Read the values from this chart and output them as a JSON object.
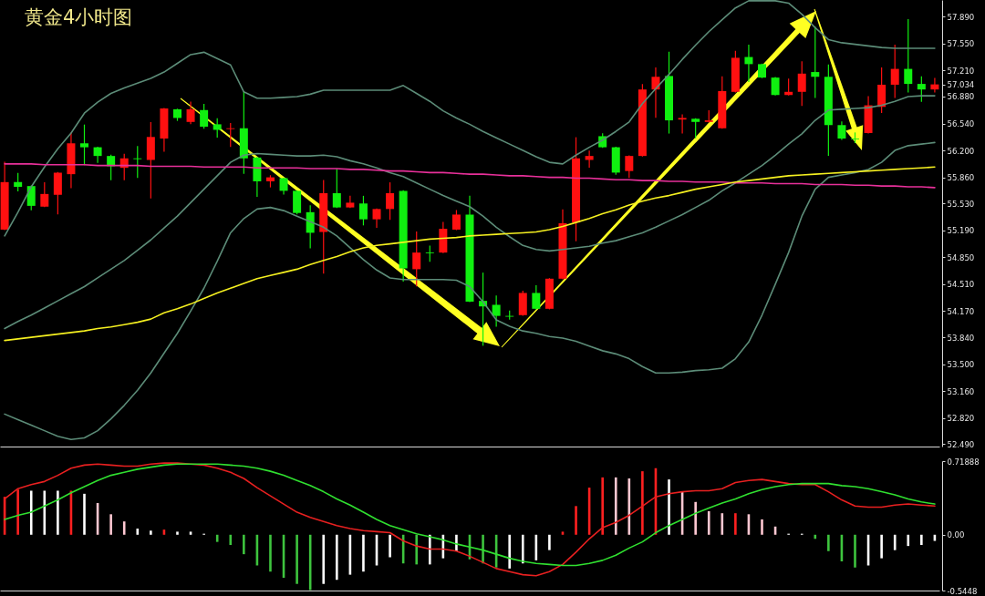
{
  "chart_data": [
    {
      "type": "candlestick",
      "title": "黄金4小时图",
      "tick_labels": "y",
      "ylim": [
        52.46,
        58.1
      ],
      "yticks": [
        {
          "value": 57.89,
          "label": "57.890"
        },
        {
          "value": 57.55,
          "label": "57.550"
        },
        {
          "value": 57.21,
          "label": "57.210"
        },
        57.034,
        {
          "value": 56.88,
          "label": "56.880"
        },
        {
          "value": 56.54,
          "label": "56.540"
        },
        {
          "value": 56.2,
          "label": "56.200"
        },
        {
          "value": 55.86,
          "label": "55.860"
        },
        {
          "value": 55.53,
          "label": "55.530"
        },
        {
          "value": 55.19,
          "label": "55.190"
        },
        {
          "value": 54.85,
          "label": "54.850"
        },
        {
          "value": 54.51,
          "label": "54.510"
        },
        {
          "value": 54.17,
          "label": "54.170"
        },
        {
          "value": 53.84,
          "label": "53.840"
        },
        {
          "value": 53.5,
          "label": "53.500"
        },
        {
          "value": 53.16,
          "label": "53.160"
        },
        {
          "value": 52.82,
          "label": "52.820"
        },
        {
          "value": 52.49,
          "label": "52.490"
        }
      ],
      "categories": [
        null,
        null,
        null,
        null,
        null,
        null,
        null,
        null,
        null,
        null,
        null,
        null,
        null,
        null,
        null,
        null,
        null,
        null,
        null,
        null,
        null,
        null,
        null,
        null,
        null,
        null,
        null,
        null,
        null,
        null,
        null,
        null,
        null,
        null,
        null,
        null,
        null,
        null,
        null,
        null,
        null,
        null,
        null,
        null,
        null,
        null,
        null,
        null,
        null,
        null,
        null,
        null,
        null,
        null,
        null,
        null,
        null,
        null,
        null,
        null,
        null,
        null,
        null,
        null,
        null,
        null,
        null,
        null,
        null,
        null,
        null
      ],
      "series": [
        {
          "type": "line",
          "color": "#5c8c78",
          "values": [
            55.12,
            55.42,
            55.74,
            55.99,
            56.22,
            56.42,
            56.67,
            56.81,
            56.92,
            56.99,
            57.05,
            57.11,
            57.19,
            57.3,
            57.41,
            57.44,
            57.36,
            57.28,
            56.94,
            56.86,
            56.86,
            56.87,
            56.88,
            56.91,
            56.96,
            56.96,
            56.96,
            56.96,
            56.96,
            56.96,
            57.02,
            56.92,
            56.82,
            56.7,
            56.61,
            56.53,
            56.44,
            56.36,
            56.28,
            56.2,
            56.12,
            56.05,
            56.03,
            56.14,
            56.24,
            56.33,
            56.44,
            56.56,
            56.79,
            56.98,
            57.16,
            57.35,
            57.53,
            57.7,
            57.85,
            58.0,
            58.09,
            58.09,
            58.09,
            58.06,
            57.92,
            57.75,
            57.6,
            57.56,
            57.54,
            57.52,
            57.5,
            57.49,
            57.49,
            57.49,
            57.49
          ]
        },
        {
          "type": "line",
          "color": "#5c8c78",
          "values": [
            53.95,
            54.04,
            54.12,
            54.21,
            54.3,
            54.39,
            54.48,
            54.59,
            54.7,
            54.81,
            54.94,
            55.07,
            55.22,
            55.37,
            55.54,
            55.71,
            55.88,
            56.05,
            56.14,
            56.16,
            56.15,
            56.14,
            56.13,
            56.13,
            56.14,
            56.12,
            56.07,
            56.03,
            55.98,
            55.92,
            55.87,
            55.79,
            55.71,
            55.63,
            55.56,
            55.49,
            55.37,
            55.23,
            55.11,
            55.0,
            54.95,
            54.93,
            54.95,
            54.97,
            54.99,
            55.03,
            55.06,
            55.11,
            55.16,
            55.23,
            55.31,
            55.39,
            55.48,
            55.57,
            55.69,
            55.79,
            55.9,
            56.01,
            56.14,
            56.28,
            56.41,
            56.58,
            56.71,
            56.72,
            56.73,
            56.74,
            56.77,
            56.82,
            56.88,
            56.89,
            56.89
          ]
        },
        {
          "type": "line",
          "color": "#5c8c78",
          "values": [
            52.87,
            52.8,
            52.73,
            52.66,
            52.59,
            52.55,
            52.57,
            52.66,
            52.81,
            52.98,
            53.17,
            53.39,
            53.64,
            53.89,
            54.17,
            54.46,
            54.8,
            55.16,
            55.34,
            55.46,
            55.48,
            55.44,
            55.37,
            55.3,
            55.23,
            55.12,
            54.97,
            54.82,
            54.69,
            54.59,
            54.57,
            54.57,
            54.57,
            54.57,
            54.56,
            54.48,
            54.29,
            54.06,
            53.98,
            53.92,
            53.89,
            53.85,
            53.83,
            53.79,
            53.73,
            53.67,
            53.63,
            53.57,
            53.47,
            53.39,
            53.39,
            53.4,
            53.42,
            53.43,
            53.45,
            53.57,
            53.78,
            54.12,
            54.51,
            54.91,
            55.37,
            55.71,
            55.86,
            55.89,
            55.92,
            55.96,
            56.05,
            56.2,
            56.26,
            56.28,
            56.3
          ]
        },
        {
          "type": "line",
          "color": "#e8309a",
          "values": [
            56.03,
            56.03,
            56.03,
            56.02,
            56.02,
            56.02,
            56.02,
            56.01,
            56.01,
            56.01,
            56.01,
            56.0,
            56.0,
            56.0,
            56.0,
            55.99,
            55.99,
            55.99,
            55.99,
            55.98,
            55.98,
            55.98,
            55.98,
            55.97,
            55.97,
            55.97,
            55.96,
            55.96,
            55.95,
            55.94,
            55.94,
            55.93,
            55.92,
            55.92,
            55.91,
            55.9,
            55.9,
            55.89,
            55.88,
            55.88,
            55.87,
            55.86,
            55.86,
            55.85,
            55.85,
            55.84,
            55.83,
            55.83,
            55.82,
            55.82,
            55.81,
            55.81,
            55.8,
            55.8,
            55.8,
            55.79,
            55.79,
            55.79,
            55.78,
            55.78,
            55.78,
            55.77,
            55.77,
            55.77,
            55.76,
            55.76,
            55.75,
            55.75,
            55.74,
            55.74,
            55.73
          ]
        },
        {
          "type": "line",
          "color": "#f5f020",
          "values": [
            53.8,
            53.82,
            53.84,
            53.86,
            53.88,
            53.9,
            53.92,
            53.95,
            53.97,
            54.0,
            54.03,
            54.07,
            54.15,
            54.2,
            54.26,
            54.33,
            54.4,
            54.46,
            54.52,
            54.58,
            54.62,
            54.66,
            54.7,
            54.76,
            54.81,
            54.86,
            54.92,
            54.97,
            55.0,
            55.02,
            55.04,
            55.06,
            55.08,
            55.09,
            55.1,
            55.12,
            55.13,
            55.14,
            55.15,
            55.16,
            55.17,
            55.2,
            55.24,
            55.29,
            55.34,
            55.4,
            55.45,
            55.51,
            55.56,
            55.6,
            55.63,
            55.67,
            55.71,
            55.74,
            55.77,
            55.8,
            55.82,
            55.84,
            55.86,
            55.88,
            55.89,
            55.9,
            55.91,
            55.92,
            55.93,
            55.94,
            55.95,
            55.96,
            55.97,
            55.98,
            55.99
          ]
        },
        {
          "type": "candlestick",
          "ohlc": [
            [
              55.2,
              56.05,
              55.2,
              55.8
            ],
            [
              55.8,
              55.91,
              55.69,
              55.74
            ],
            [
              55.75,
              55.75,
              55.45,
              55.5
            ],
            [
              55.49,
              55.79,
              55.49,
              55.65
            ],
            [
              55.64,
              55.92,
              55.4,
              55.92
            ],
            [
              55.9,
              56.42,
              55.73,
              56.29
            ],
            [
              56.29,
              56.52,
              56.02,
              56.24
            ],
            [
              56.24,
              56.24,
              56.05,
              56.13
            ],
            [
              56.13,
              56.14,
              55.83,
              56.0
            ],
            [
              55.98,
              56.15,
              55.83,
              56.1
            ],
            [
              56.1,
              56.25,
              55.86,
              56.09
            ],
            [
              56.08,
              56.55,
              55.6,
              56.37
            ],
            [
              56.35,
              56.73,
              56.19,
              56.73
            ],
            [
              56.72,
              56.72,
              56.58,
              56.61
            ],
            [
              56.56,
              56.81,
              56.54,
              56.72
            ],
            [
              56.71,
              56.78,
              56.48,
              56.5
            ],
            [
              56.53,
              56.6,
              56.37,
              56.46
            ],
            [
              56.47,
              56.54,
              56.25,
              56.48
            ],
            [
              56.48,
              56.94,
              55.91,
              56.1
            ],
            [
              56.11,
              56.11,
              55.62,
              55.81
            ],
            [
              55.81,
              55.88,
              55.74,
              55.86
            ],
            [
              55.85,
              55.85,
              55.65,
              55.69
            ],
            [
              55.69,
              55.69,
              55.4,
              55.41
            ],
            [
              55.42,
              55.5,
              54.97,
              55.16
            ],
            [
              55.17,
              55.82,
              54.65,
              55.66
            ],
            [
              55.66,
              55.96,
              55.48,
              55.48
            ],
            [
              55.48,
              55.62,
              55.48,
              55.54
            ],
            [
              55.53,
              55.62,
              55.26,
              55.33
            ],
            [
              55.33,
              55.46,
              55.23,
              55.46
            ],
            [
              55.46,
              55.79,
              55.33,
              55.66
            ],
            [
              55.69,
              55.69,
              54.55,
              54.71
            ],
            [
              54.7,
              55.17,
              54.49,
              54.91
            ],
            [
              54.91,
              54.99,
              54.8,
              54.9
            ],
            [
              54.91,
              55.29,
              54.91,
              55.21
            ],
            [
              55.2,
              55.44,
              55.2,
              55.39
            ],
            [
              55.39,
              55.62,
              54.29,
              54.29
            ],
            [
              54.3,
              54.65,
              53.74,
              54.23
            ],
            [
              54.25,
              54.36,
              53.98,
              54.11
            ],
            [
              54.11,
              54.17,
              54.07,
              54.1
            ],
            [
              54.12,
              54.42,
              54.12,
              54.4
            ],
            [
              54.4,
              54.49,
              54.2,
              54.2
            ],
            [
              54.2,
              54.58,
              54.2,
              54.58
            ],
            [
              54.58,
              55.45,
              54.58,
              55.28
            ],
            [
              55.29,
              56.36,
              55.06,
              56.1
            ],
            [
              56.08,
              56.19,
              55.99,
              56.13
            ],
            [
              56.38,
              56.41,
              56.24,
              56.24
            ],
            [
              56.24,
              56.24,
              55.9,
              55.92
            ],
            [
              55.94,
              56.13,
              55.86,
              56.13
            ],
            [
              56.13,
              57.03,
              56.13,
              56.97
            ],
            [
              56.97,
              57.24,
              56.62,
              57.13
            ],
            [
              57.14,
              57.44,
              56.42,
              56.58
            ],
            [
              56.59,
              56.65,
              56.42,
              56.61
            ],
            [
              56.6,
              56.6,
              56.36,
              56.56
            ],
            [
              56.56,
              56.7,
              56.56,
              56.58
            ],
            [
              56.48,
              57.13,
              56.48,
              56.95
            ],
            [
              56.94,
              57.45,
              56.94,
              57.37
            ],
            [
              57.38,
              57.53,
              57.07,
              57.29
            ],
            [
              57.29,
              57.29,
              57.12,
              57.12
            ],
            [
              57.12,
              57.12,
              56.9,
              56.9
            ],
            [
              56.9,
              57.1,
              56.9,
              56.94
            ],
            [
              56.94,
              57.32,
              56.77,
              57.17
            ],
            [
              57.19,
              57.76,
              56.87,
              57.13
            ],
            [
              57.13,
              57.28,
              56.14,
              56.52
            ],
            [
              56.52,
              56.56,
              56.34,
              56.35
            ],
            [
              56.35,
              56.42,
              56.3,
              56.34
            ],
            [
              56.42,
              56.88,
              56.42,
              56.77
            ],
            [
              56.75,
              57.24,
              56.68,
              57.03
            ],
            [
              57.03,
              57.53,
              56.87,
              57.23
            ],
            [
              57.23,
              57.85,
              56.94,
              57.04
            ],
            [
              57.04,
              57.13,
              56.82,
              56.97
            ],
            [
              56.97,
              57.11,
              56.94,
              57.034
            ]
          ],
          "colors": [
            "#ff1010",
            "#10f010",
            "#10f010",
            "#ff1010",
            "#ff1010",
            "#ff1010",
            "#10f010",
            "#10f010",
            "#10f010",
            "#ff1010",
            "#10f010",
            "#ff1010",
            "#ff1010",
            "#10f010",
            "#ff1010",
            "#10f010",
            "#10f010",
            "#ff1010",
            "#10f010",
            "#10f010",
            "#ff1010",
            "#10f010",
            "#10f010",
            "#10f010",
            "#ff1010",
            "#10f010",
            "#ff1010",
            "#10f010",
            "#ff1010",
            "#ff1010",
            "#10f010",
            "#ff1010",
            "#10f010",
            "#ff1010",
            "#ff1010",
            "#10f010",
            "#10f010",
            "#10f010",
            "#10f010",
            "#ff1010",
            "#10f010",
            "#ff1010",
            "#ff1010",
            "#ff1010",
            "#ff1010",
            "#10f010",
            "#10f010",
            "#ff1010",
            "#ff1010",
            "#ff1010",
            "#10f010",
            "#ff1010",
            "#10f010",
            "#ff1010",
            "#ff1010",
            "#ff1010",
            "#10f010",
            "#10f010",
            "#10f010",
            "#ff1010",
            "#ff1010",
            "#10f010",
            "#10f010",
            "#10f010",
            "#10f010",
            "#ff1010",
            "#ff1010",
            "#ff1010",
            "#10f010",
            "#10f010",
            "#ff1010"
          ]
        }
      ]
    },
    {
      "type": "bar",
      "tick_labels": "y",
      "ylim": [
        -0.5448,
        0.71888
      ],
      "yticks": [
        0.71888,
        {
          "value": 0,
          "label": "0.00"
        },
        -0.5448
      ],
      "categories": [
        null,
        null,
        null,
        null,
        null,
        null,
        null,
        null,
        null,
        null,
        null,
        null,
        null,
        null,
        null,
        null,
        null,
        null,
        null,
        null,
        null,
        null,
        null,
        null,
        null,
        null,
        null,
        null,
        null,
        null,
        null,
        null,
        null,
        null,
        null,
        null,
        null,
        null,
        null,
        null,
        null,
        null,
        null,
        null,
        null,
        null,
        null,
        null,
        null,
        null,
        null,
        null,
        null,
        null,
        null,
        null,
        null,
        null,
        null,
        null,
        null,
        null,
        null,
        null,
        null,
        null,
        null,
        null,
        null,
        null,
        null
      ],
      "series": [
        {
          "type": "bar",
          "values": [
            0.37,
            0.44,
            0.43,
            0.43,
            0.43,
            0.43,
            0.4,
            0.31,
            0.2,
            0.13,
            0.06,
            0.04,
            0.05,
            0.03,
            0.03,
            0.01,
            -0.07,
            -0.1,
            -0.19,
            -0.3,
            -0.36,
            -0.42,
            -0.48,
            -0.54,
            -0.48,
            -0.44,
            -0.39,
            -0.36,
            -0.3,
            -0.22,
            -0.28,
            -0.29,
            -0.29,
            -0.23,
            -0.16,
            -0.24,
            -0.28,
            -0.32,
            -0.33,
            -0.28,
            -0.25,
            -0.15,
            0.03,
            0.28,
            0.46,
            0.56,
            0.56,
            0.55,
            0.62,
            0.65,
            0.54,
            0.42,
            0.32,
            0.23,
            0.21,
            0.21,
            0.2,
            0.15,
            0.08,
            0.01,
            0.01,
            -0.04,
            -0.16,
            -0.26,
            -0.32,
            -0.3,
            -0.23,
            -0.15,
            -0.11,
            -0.1,
            -0.06
          ],
          "colors": [
            "#ff2020",
            "#ff2020",
            "#ffffff",
            "#ffffff",
            "#ffffff",
            "#ff2020",
            "#ffffff",
            "#ffc8d2",
            "#ffc8d2",
            "#ffc8d2",
            "#ffffff",
            "#ffffff",
            "#ff2020",
            "#ffffff",
            "#ffffff",
            "#ffffff",
            "#3ec43e",
            "#3ec43e",
            "#3ec43e",
            "#3ec43e",
            "#3ec43e",
            "#3ec43e",
            "#3ec43e",
            "#3ec43e",
            "#ffffff",
            "#ffffff",
            "#ffffff",
            "#ffffff",
            "#ffffff",
            "#ffffff",
            "#3ec43e",
            "#3ec43e",
            "#ffffff",
            "#ffffff",
            "#ffffff",
            "#3ec43e",
            "#3ec43e",
            "#3ec43e",
            "#ffffff",
            "#ffffff",
            "#ffffff",
            "#ffffff",
            "#ff2020",
            "#ff2020",
            "#ff2020",
            "#ff2020",
            "#ffc8d2",
            "#ffc8d2",
            "#ff2020",
            "#ff2020",
            "#ffffff",
            "#ffc8d2",
            "#ffc8d2",
            "#ffc8d2",
            "#ffc8d2",
            "#ff2020",
            "#ffc8d2",
            "#ffc8d2",
            "#ffc8d2",
            "#ffffff",
            "#ffffff",
            "#3ec43e",
            "#3ec43e",
            "#3ec43e",
            "#3ec43e",
            "#ffffff",
            "#ffffff",
            "#ffffff",
            "#ffffff",
            "#ffffff",
            "#ffffff"
          ]
        },
        {
          "type": "line",
          "color": "#e82020",
          "values": [
            0.35,
            0.45,
            0.49,
            0.52,
            0.58,
            0.65,
            0.68,
            0.69,
            0.68,
            0.67,
            0.67,
            0.69,
            0.7,
            0.7,
            0.69,
            0.68,
            0.65,
            0.61,
            0.55,
            0.46,
            0.38,
            0.3,
            0.22,
            0.17,
            0.13,
            0.09,
            0.06,
            0.04,
            0.03,
            0.02,
            -0.06,
            -0.11,
            -0.14,
            -0.14,
            -0.16,
            -0.21,
            -0.27,
            -0.33,
            -0.36,
            -0.39,
            -0.4,
            -0.36,
            -0.29,
            -0.17,
            -0.04,
            0.07,
            0.12,
            0.19,
            0.28,
            0.37,
            0.4,
            0.42,
            0.43,
            0.43,
            0.45,
            0.51,
            0.53,
            0.54,
            0.52,
            0.5,
            0.49,
            0.49,
            0.42,
            0.34,
            0.28,
            0.27,
            0.27,
            0.29,
            0.3,
            0.29,
            0.28
          ]
        },
        {
          "type": "line",
          "color": "#30e030",
          "values": [
            0.15,
            0.19,
            0.22,
            0.28,
            0.34,
            0.41,
            0.47,
            0.53,
            0.58,
            0.61,
            0.64,
            0.66,
            0.68,
            0.69,
            0.69,
            0.69,
            0.69,
            0.68,
            0.67,
            0.65,
            0.62,
            0.58,
            0.53,
            0.48,
            0.42,
            0.35,
            0.29,
            0.22,
            0.15,
            0.09,
            0.05,
            0.01,
            -0.02,
            -0.05,
            -0.09,
            -0.12,
            -0.15,
            -0.19,
            -0.23,
            -0.26,
            -0.28,
            -0.29,
            -0.3,
            -0.3,
            -0.28,
            -0.25,
            -0.2,
            -0.13,
            -0.07,
            0.02,
            0.09,
            0.15,
            0.21,
            0.26,
            0.31,
            0.35,
            0.4,
            0.44,
            0.47,
            0.49,
            0.5,
            0.5,
            0.5,
            0.48,
            0.47,
            0.45,
            0.42,
            0.39,
            0.35,
            0.32,
            0.3
          ]
        }
      ]
    }
  ]
}
